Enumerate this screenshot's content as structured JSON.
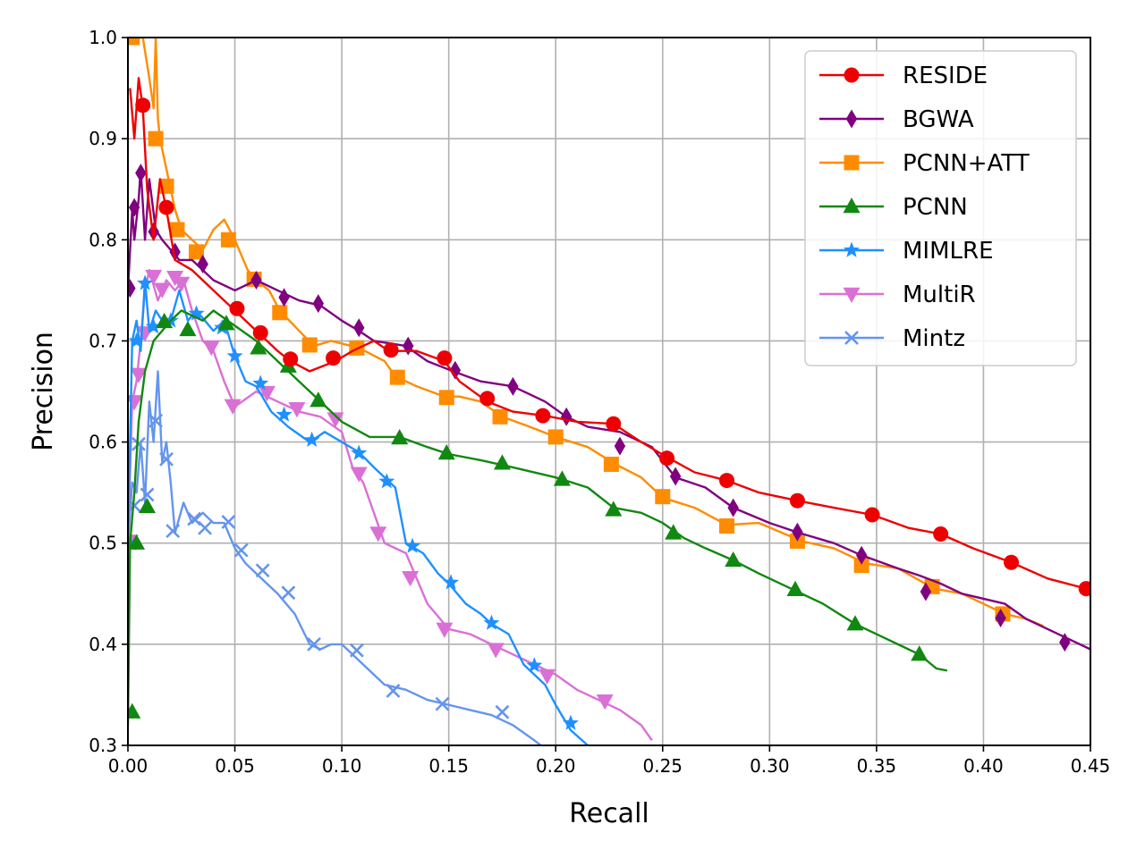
{
  "chart_data": {
    "type": "line",
    "xlabel": "Recall",
    "ylabel": "Precision",
    "xlim": [
      0.0,
      0.45
    ],
    "ylim": [
      0.3,
      1.0
    ],
    "xticks": [
      "0.00",
      "0.05",
      "0.10",
      "0.15",
      "0.20",
      "0.25",
      "0.30",
      "0.35",
      "0.40",
      "0.45"
    ],
    "xtick_values": [
      0.0,
      0.05,
      0.1,
      0.15,
      0.2,
      0.25,
      0.3,
      0.35,
      0.4,
      0.45
    ],
    "yticks": [
      "0.3",
      "0.4",
      "0.5",
      "0.6",
      "0.7",
      "0.8",
      "0.9",
      "1.0"
    ],
    "ytick_values": [
      0.3,
      0.4,
      0.5,
      0.6,
      0.7,
      0.8,
      0.9,
      1.0
    ],
    "grid": true,
    "legend_position": "top-right",
    "series": [
      {
        "name": "RESIDE",
        "color": "#ee0000",
        "marker": "circle",
        "x": [
          0.001,
          0.003,
          0.005,
          0.007,
          0.009,
          0.012,
          0.015,
          0.018,
          0.022,
          0.03,
          0.04,
          0.05,
          0.06,
          0.07,
          0.076,
          0.085,
          0.097,
          0.105,
          0.115,
          0.122,
          0.135,
          0.148,
          0.155,
          0.168,
          0.18,
          0.195,
          0.21,
          0.227,
          0.24,
          0.252,
          0.265,
          0.28,
          0.295,
          0.313,
          0.33,
          0.348,
          0.365,
          0.38,
          0.395,
          0.413,
          0.43,
          0.448
        ],
        "y": [
          0.95,
          0.9,
          0.96,
          0.93,
          0.85,
          0.8,
          0.86,
          0.83,
          0.78,
          0.77,
          0.75,
          0.73,
          0.71,
          0.69,
          0.68,
          0.67,
          0.68,
          0.69,
          0.7,
          0.69,
          0.69,
          0.68,
          0.66,
          0.64,
          0.63,
          0.626,
          0.62,
          0.618,
          0.6,
          0.585,
          0.57,
          0.562,
          0.55,
          0.542,
          0.535,
          0.528,
          0.515,
          0.509,
          0.495,
          0.481,
          0.465,
          0.455
        ],
        "markers_x": [
          0.007,
          0.018,
          0.051,
          0.062,
          0.076,
          0.096,
          0.123,
          0.148,
          0.168,
          0.194,
          0.227,
          0.252,
          0.28,
          0.313,
          0.348,
          0.38,
          0.413,
          0.448
        ],
        "markers_y": [
          0.933,
          0.832,
          0.732,
          0.708,
          0.682,
          0.683,
          0.691,
          0.683,
          0.643,
          0.626,
          0.618,
          0.584,
          0.562,
          0.542,
          0.528,
          0.509,
          0.481,
          0.455
        ]
      },
      {
        "name": "BGWA",
        "color": "#800080",
        "marker": "diamond",
        "x": [
          0.0,
          0.002,
          0.003,
          0.005,
          0.006,
          0.008,
          0.01,
          0.013,
          0.016,
          0.02,
          0.024,
          0.03,
          0.04,
          0.05,
          0.06,
          0.07,
          0.08,
          0.09,
          0.1,
          0.108,
          0.115,
          0.13,
          0.14,
          0.152,
          0.165,
          0.18,
          0.195,
          0.205,
          0.215,
          0.23,
          0.245,
          0.256,
          0.27,
          0.283,
          0.3,
          0.314,
          0.33,
          0.343,
          0.36,
          0.37,
          0.38,
          0.39,
          0.41,
          0.42,
          0.44,
          0.45
        ],
        "y": [
          0.75,
          0.83,
          0.8,
          0.84,
          0.87,
          0.8,
          0.86,
          0.81,
          0.8,
          0.79,
          0.78,
          0.78,
          0.76,
          0.75,
          0.76,
          0.75,
          0.74,
          0.735,
          0.72,
          0.71,
          0.7,
          0.695,
          0.68,
          0.67,
          0.66,
          0.655,
          0.64,
          0.625,
          0.615,
          0.61,
          0.595,
          0.565,
          0.555,
          0.535,
          0.52,
          0.51,
          0.5,
          0.488,
          0.475,
          0.468,
          0.46,
          0.45,
          0.44,
          0.425,
          0.405,
          0.395
        ],
        "markers_x": [
          0.001,
          0.003,
          0.006,
          0.012,
          0.022,
          0.035,
          0.06,
          0.073,
          0.089,
          0.108,
          0.131,
          0.153,
          0.18,
          0.205,
          0.23,
          0.256,
          0.283,
          0.313,
          0.343,
          0.373,
          0.408,
          0.438
        ],
        "markers_y": [
          0.752,
          0.832,
          0.866,
          0.808,
          0.788,
          0.776,
          0.76,
          0.743,
          0.737,
          0.713,
          0.695,
          0.671,
          0.655,
          0.625,
          0.596,
          0.566,
          0.535,
          0.511,
          0.488,
          0.452,
          0.426,
          0.402
        ]
      },
      {
        "name": "PCNN+ATT",
        "color": "#ff8c00",
        "marker": "square",
        "x": [
          0.0,
          0.002,
          0.007,
          0.01,
          0.012,
          0.013,
          0.014,
          0.015,
          0.017,
          0.019,
          0.022,
          0.025,
          0.03,
          0.035,
          0.04,
          0.045,
          0.05,
          0.052,
          0.056,
          0.06,
          0.066,
          0.071,
          0.08,
          0.087,
          0.095,
          0.108,
          0.12,
          0.125,
          0.135,
          0.148,
          0.155,
          0.165,
          0.175,
          0.188,
          0.2,
          0.215,
          0.228,
          0.24,
          0.25,
          0.265,
          0.28,
          0.295,
          0.315,
          0.33,
          0.345,
          0.36,
          0.377,
          0.39,
          0.41,
          0.42,
          0.428
        ],
        "y": [
          1.0,
          1.0,
          1.0,
          0.96,
          0.93,
          1.0,
          0.92,
          0.9,
          0.88,
          0.86,
          0.83,
          0.81,
          0.8,
          0.79,
          0.81,
          0.82,
          0.8,
          0.79,
          0.77,
          0.76,
          0.75,
          0.73,
          0.71,
          0.695,
          0.7,
          0.693,
          0.68,
          0.665,
          0.655,
          0.645,
          0.645,
          0.64,
          0.625,
          0.615,
          0.605,
          0.595,
          0.578,
          0.565,
          0.545,
          0.535,
          0.518,
          0.52,
          0.502,
          0.495,
          0.48,
          0.475,
          0.455,
          0.45,
          0.43,
          0.425,
          0.418
        ],
        "markers_x": [
          0.002,
          0.013,
          0.018,
          0.023,
          0.032,
          0.047,
          0.059,
          0.071,
          0.085,
          0.107,
          0.126,
          0.149,
          0.174,
          0.2,
          0.226,
          0.25,
          0.28,
          0.313,
          0.343,
          0.376,
          0.409
        ],
        "markers_y": [
          1.0,
          0.9,
          0.853,
          0.81,
          0.788,
          0.8,
          0.761,
          0.728,
          0.696,
          0.693,
          0.664,
          0.644,
          0.625,
          0.605,
          0.578,
          0.546,
          0.517,
          0.502,
          0.478,
          0.457,
          0.43
        ]
      },
      {
        "name": "PCNN",
        "color": "#118811",
        "marker": "triangle",
        "x": [
          0.0,
          0.001,
          0.003,
          0.005,
          0.008,
          0.012,
          0.016,
          0.02,
          0.025,
          0.03,
          0.035,
          0.04,
          0.05,
          0.06,
          0.07,
          0.08,
          0.09,
          0.1,
          0.113,
          0.127,
          0.14,
          0.15,
          0.165,
          0.18,
          0.2,
          0.215,
          0.227,
          0.24,
          0.25,
          0.26,
          0.27,
          0.283,
          0.295,
          0.31,
          0.325,
          0.34,
          0.355,
          0.37,
          0.378,
          0.383
        ],
        "y": [
          0.32,
          0.5,
          0.55,
          0.62,
          0.67,
          0.7,
          0.71,
          0.72,
          0.73,
          0.725,
          0.72,
          0.73,
          0.715,
          0.7,
          0.68,
          0.66,
          0.64,
          0.62,
          0.605,
          0.605,
          0.595,
          0.588,
          0.582,
          0.575,
          0.565,
          0.555,
          0.535,
          0.53,
          0.52,
          0.505,
          0.495,
          0.483,
          0.47,
          0.455,
          0.44,
          0.42,
          0.405,
          0.39,
          0.376,
          0.374
        ],
        "markers_x": [
          0.002,
          0.004,
          0.009,
          0.017,
          0.028,
          0.046,
          0.061,
          0.075,
          0.089,
          0.127,
          0.149,
          0.175,
          0.203,
          0.227,
          0.255,
          0.283,
          0.312,
          0.34,
          0.37
        ],
        "markers_y": [
          0.333,
          0.5,
          0.536,
          0.719,
          0.711,
          0.717,
          0.693,
          0.675,
          0.641,
          0.604,
          0.589,
          0.579,
          0.563,
          0.533,
          0.51,
          0.483,
          0.454,
          0.42,
          0.39
        ]
      },
      {
        "name": "MIMLRE",
        "color": "#1e90ff",
        "marker": "star",
        "x": [
          0.0,
          0.002,
          0.004,
          0.006,
          0.008,
          0.01,
          0.013,
          0.016,
          0.02,
          0.024,
          0.028,
          0.032,
          0.036,
          0.04,
          0.045,
          0.05,
          0.055,
          0.06,
          0.067,
          0.075,
          0.085,
          0.092,
          0.1,
          0.108,
          0.115,
          0.125,
          0.13,
          0.138,
          0.145,
          0.15,
          0.158,
          0.165,
          0.17,
          0.178,
          0.185,
          0.195,
          0.2,
          0.207,
          0.215
        ],
        "y": [
          0.5,
          0.7,
          0.72,
          0.69,
          0.76,
          0.71,
          0.73,
          0.72,
          0.72,
          0.75,
          0.72,
          0.73,
          0.72,
          0.71,
          0.72,
          0.685,
          0.66,
          0.655,
          0.63,
          0.615,
          0.6,
          0.61,
          0.6,
          0.59,
          0.575,
          0.555,
          0.5,
          0.49,
          0.47,
          0.46,
          0.44,
          0.43,
          0.42,
          0.41,
          0.38,
          0.36,
          0.34,
          0.315,
          0.3
        ],
        "markers_x": [
          0.001,
          0.004,
          0.008,
          0.012,
          0.02,
          0.032,
          0.044,
          0.05,
          0.062,
          0.073,
          0.086,
          0.108,
          0.121,
          0.133,
          0.151,
          0.17,
          0.19,
          0.207
        ],
        "markers_y": [
          0.5,
          0.7,
          0.757,
          0.714,
          0.72,
          0.727,
          0.713,
          0.685,
          0.658,
          0.627,
          0.602,
          0.589,
          0.561,
          0.497,
          0.461,
          0.421,
          0.379,
          0.322
        ]
      },
      {
        "name": "MultiR",
        "color": "#da70d6",
        "marker": "triangle-down",
        "x": [
          0.0,
          0.002,
          0.004,
          0.006,
          0.008,
          0.01,
          0.014,
          0.018,
          0.022,
          0.026,
          0.03,
          0.035,
          0.04,
          0.045,
          0.05,
          0.06,
          0.07,
          0.08,
          0.09,
          0.1,
          0.105,
          0.11,
          0.115,
          0.12,
          0.13,
          0.135,
          0.14,
          0.15,
          0.16,
          0.17,
          0.18,
          0.19,
          0.2,
          0.21,
          0.22,
          0.23,
          0.24,
          0.245
        ],
        "y": [
          0.5,
          0.64,
          0.66,
          0.7,
          0.75,
          0.77,
          0.74,
          0.76,
          0.75,
          0.76,
          0.73,
          0.7,
          0.69,
          0.66,
          0.635,
          0.65,
          0.64,
          0.63,
          0.625,
          0.61,
          0.575,
          0.56,
          0.53,
          0.5,
          0.49,
          0.465,
          0.44,
          0.415,
          0.41,
          0.4,
          0.39,
          0.38,
          0.37,
          0.355,
          0.345,
          0.335,
          0.32,
          0.305
        ],
        "markers_x": [
          0.001,
          0.003,
          0.005,
          0.008,
          0.012,
          0.016,
          0.022,
          0.025,
          0.039,
          0.049,
          0.065,
          0.079,
          0.097,
          0.108,
          0.117,
          0.132,
          0.148,
          0.172,
          0.196,
          0.223
        ],
        "markers_y": [
          0.502,
          0.64,
          0.667,
          0.708,
          0.764,
          0.751,
          0.763,
          0.757,
          0.694,
          0.636,
          0.649,
          0.633,
          0.623,
          0.569,
          0.51,
          0.466,
          0.415,
          0.395,
          0.369,
          0.344
        ]
      },
      {
        "name": "Mintz",
        "color": "#6495ed",
        "marker": "x",
        "x": [
          0.0,
          0.002,
          0.004,
          0.006,
          0.008,
          0.01,
          0.012,
          0.014,
          0.016,
          0.018,
          0.02,
          0.022,
          0.026,
          0.03,
          0.035,
          0.04,
          0.045,
          0.05,
          0.055,
          0.06,
          0.065,
          0.07,
          0.078,
          0.085,
          0.09,
          0.095,
          0.1,
          0.11,
          0.12,
          0.13,
          0.14,
          0.15,
          0.16,
          0.17,
          0.18,
          0.19,
          0.193
        ],
        "y": [
          0.5,
          0.56,
          0.55,
          0.6,
          0.54,
          0.64,
          0.6,
          0.67,
          0.58,
          0.6,
          0.56,
          0.51,
          0.54,
          0.52,
          0.53,
          0.52,
          0.52,
          0.495,
          0.48,
          0.47,
          0.46,
          0.45,
          0.43,
          0.4,
          0.395,
          0.4,
          0.4,
          0.38,
          0.36,
          0.355,
          0.345,
          0.34,
          0.335,
          0.33,
          0.32,
          0.305,
          0.3
        ],
        "markers_x": [
          0.001,
          0.003,
          0.005,
          0.009,
          0.013,
          0.018,
          0.021,
          0.031,
          0.036,
          0.047,
          0.053,
          0.063,
          0.075,
          0.087,
          0.107,
          0.124,
          0.147,
          0.175
        ],
        "markers_y": [
          0.5,
          0.537,
          0.598,
          0.548,
          0.621,
          0.583,
          0.512,
          0.524,
          0.515,
          0.521,
          0.493,
          0.473,
          0.451,
          0.4,
          0.394,
          0.354,
          0.341,
          0.333
        ]
      }
    ]
  }
}
